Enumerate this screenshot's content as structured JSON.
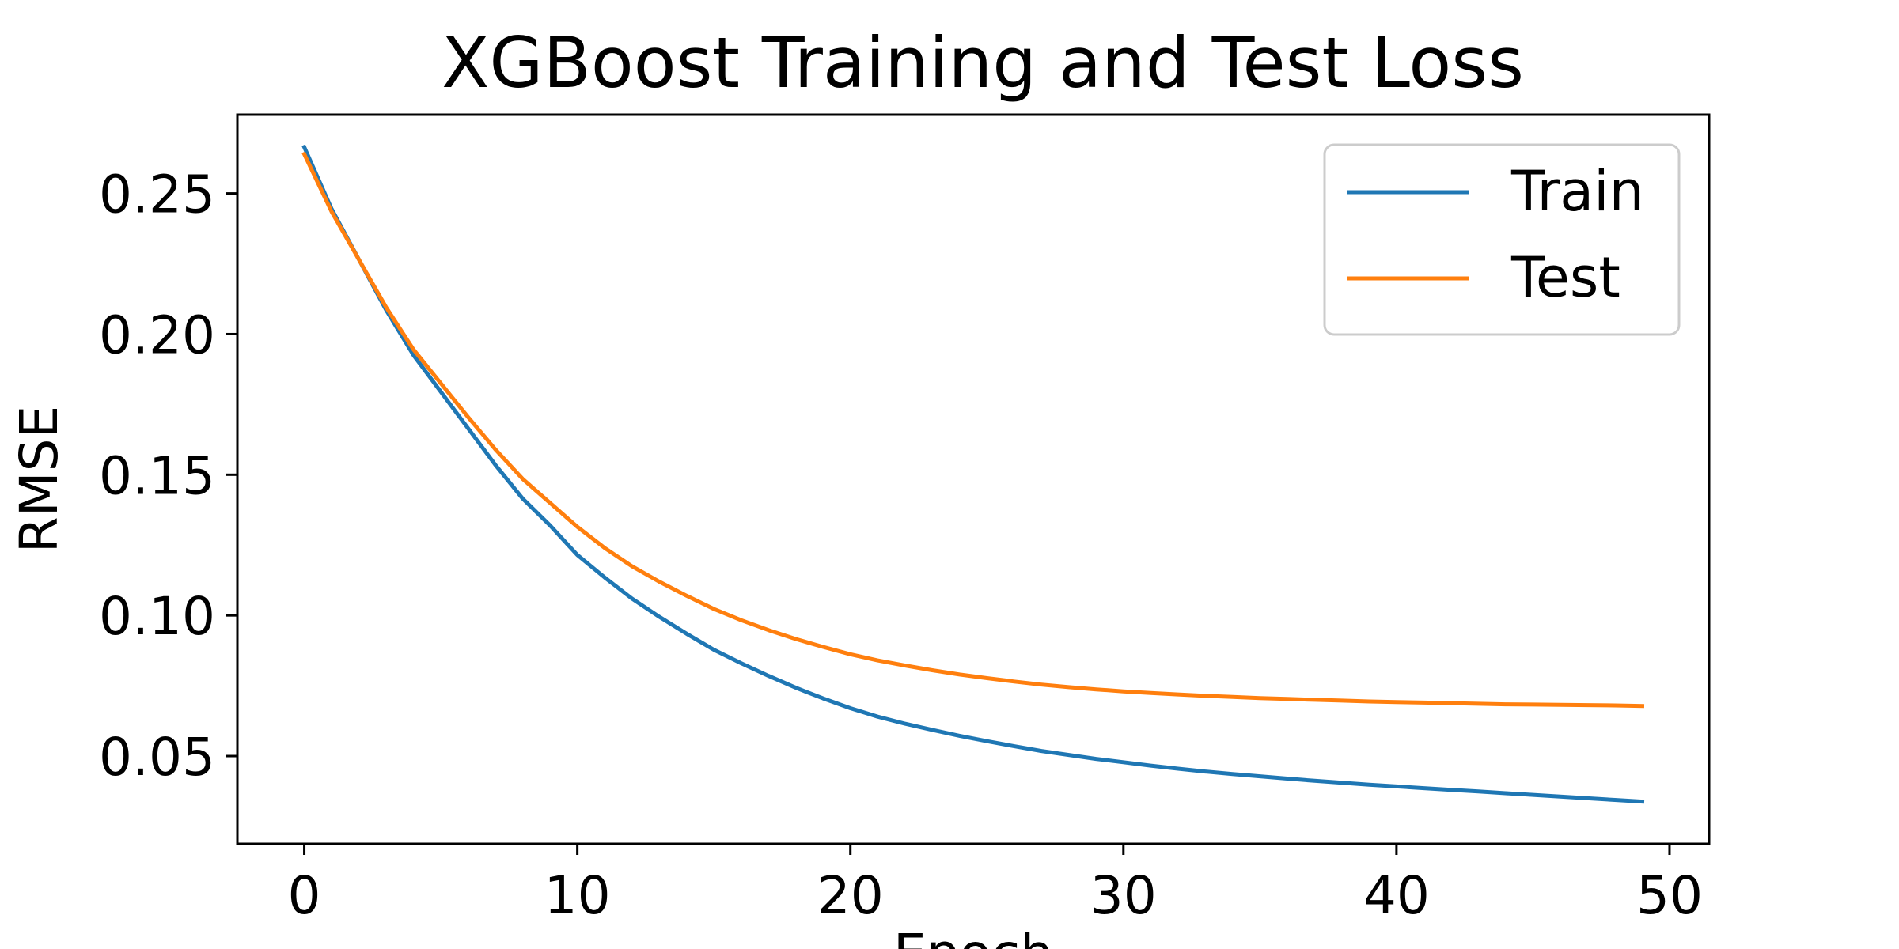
{
  "chart_data": {
    "type": "line",
    "title": "XGBoost Training and Test Loss",
    "xlabel": "Epoch",
    "ylabel": "RMSE",
    "xlim": [
      -2.45,
      51.45
    ],
    "ylim": [
      0.0188,
      0.278
    ],
    "xticks": [
      0,
      10,
      20,
      30,
      40,
      50
    ],
    "yticks": [
      0.05,
      0.1,
      0.15,
      0.2,
      0.25
    ],
    "grid": false,
    "legend_position": "top-right",
    "x": [
      0,
      1,
      2,
      3,
      4,
      5,
      6,
      7,
      8,
      9,
      10,
      11,
      12,
      13,
      14,
      15,
      16,
      17,
      18,
      19,
      20,
      21,
      22,
      23,
      24,
      25,
      26,
      27,
      28,
      29,
      30,
      31,
      32,
      33,
      34,
      35,
      36,
      37,
      38,
      39,
      40,
      41,
      42,
      43,
      44,
      45,
      46,
      47,
      48,
      49
    ],
    "series": [
      {
        "name": "Train",
        "color": "#1f77b4",
        "values": [
          0.2665,
          0.2445,
          0.2265,
          0.2085,
          0.1925,
          0.1795,
          0.1665,
          0.1535,
          0.1415,
          0.132,
          0.1215,
          0.1135,
          0.106,
          0.0995,
          0.0935,
          0.0878,
          0.083,
          0.0785,
          0.0743,
          0.0705,
          0.067,
          0.064,
          0.0615,
          0.0593,
          0.0572,
          0.0553,
          0.0535,
          0.0518,
          0.0504,
          0.049,
          0.0478,
          0.0466,
          0.0455,
          0.0445,
          0.0436,
          0.0428,
          0.042,
          0.0412,
          0.0405,
          0.0398,
          0.0392,
          0.0386,
          0.038,
          0.0374,
          0.0368,
          0.0362,
          0.0356,
          0.035,
          0.0344,
          0.0338
        ]
      },
      {
        "name": "Test",
        "color": "#ff7f0e",
        "values": [
          0.264,
          0.2435,
          0.2265,
          0.2095,
          0.1945,
          0.1825,
          0.1705,
          0.159,
          0.1485,
          0.14,
          0.1315,
          0.124,
          0.1175,
          0.112,
          0.107,
          0.1023,
          0.0983,
          0.0948,
          0.0916,
          0.0888,
          0.0862,
          0.084,
          0.0822,
          0.0805,
          0.079,
          0.0777,
          0.0765,
          0.0754,
          0.0745,
          0.0737,
          0.073,
          0.0724,
          0.0719,
          0.0714,
          0.071,
          0.0706,
          0.0703,
          0.07,
          0.0697,
          0.0694,
          0.0692,
          0.069,
          0.0688,
          0.0686,
          0.0684,
          0.0683,
          0.0682,
          0.0681,
          0.068,
          0.0678
        ]
      }
    ]
  }
}
